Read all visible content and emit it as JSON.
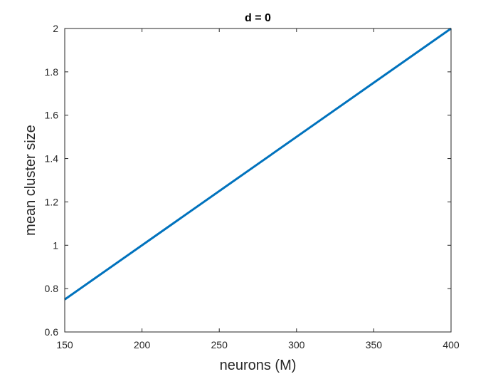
{
  "chart_data": {
    "type": "line",
    "title": "d = 0",
    "xlabel": "neurons (M)",
    "ylabel": "mean cluster size",
    "xlim": [
      150,
      400
    ],
    "ylim": [
      0.6,
      2
    ],
    "x_ticks": [
      "150",
      "200",
      "250",
      "300",
      "350",
      "400"
    ],
    "y_ticks": [
      "0.6",
      "0.8",
      "1",
      "1.2",
      "1.4",
      "1.6",
      "1.8",
      "2"
    ],
    "grid": false,
    "series": [
      {
        "color": "#0072BD",
        "x": [
          150,
          400
        ],
        "y": [
          0.75,
          2.0
        ]
      }
    ]
  }
}
